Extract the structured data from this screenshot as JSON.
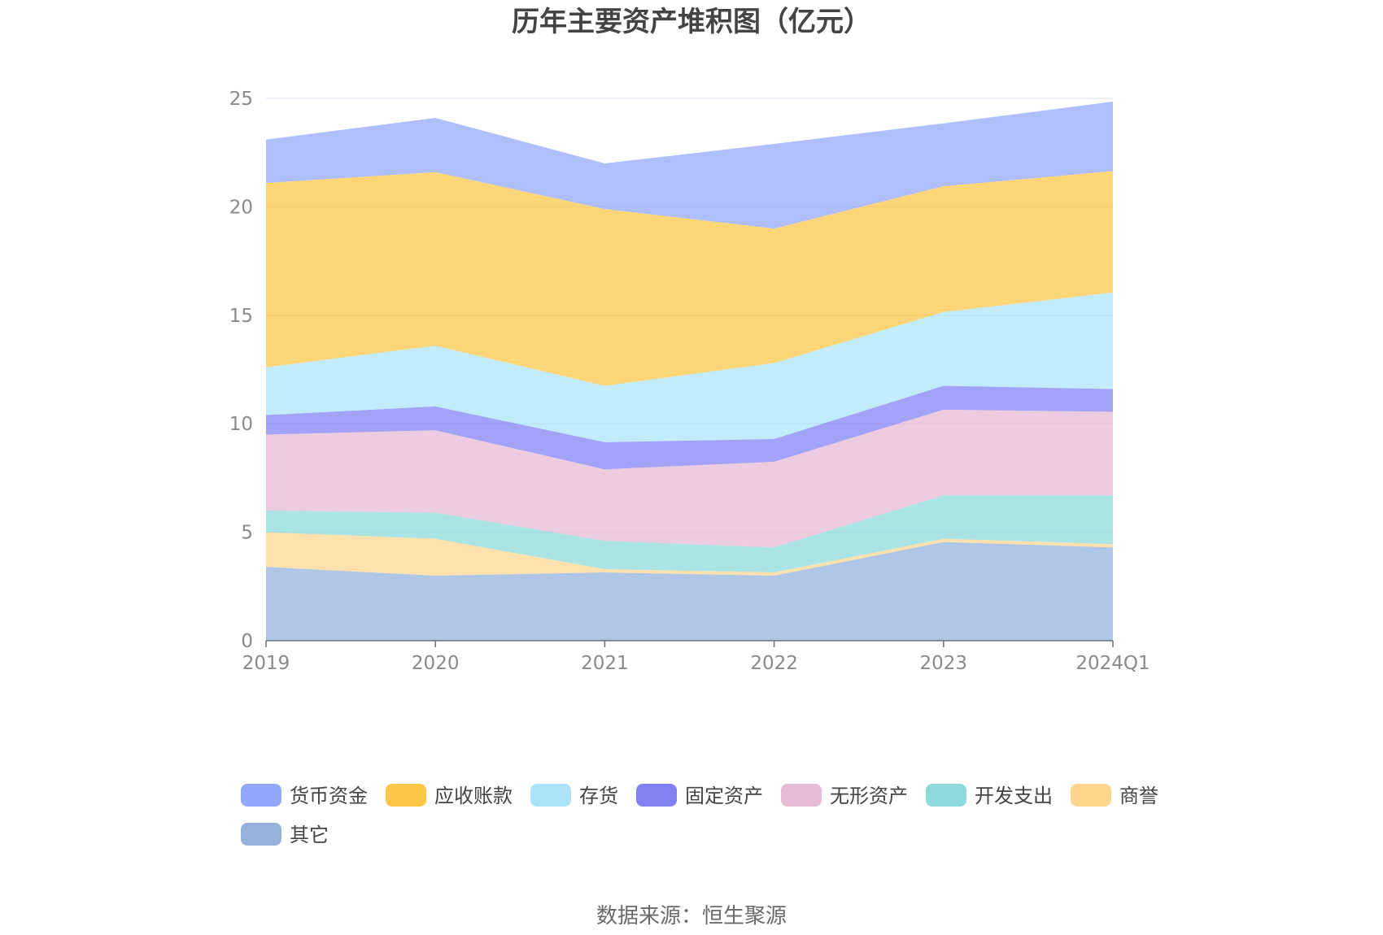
{
  "chart_data": {
    "type": "area",
    "stacked": true,
    "title": "历年主要资产堆积图（亿元）",
    "x": [
      "2019",
      "2020",
      "2021",
      "2022",
      "2023",
      "2024Q1"
    ],
    "ylim": [
      0,
      25
    ],
    "yticks": [
      0,
      5,
      10,
      15,
      20,
      25
    ],
    "grid": true,
    "legend_position": "bottom",
    "series": [
      {
        "name": "其它",
        "color": "#8FAEDB",
        "values": [
          3.4,
          3.0,
          3.15,
          3.0,
          4.55,
          4.3
        ]
      },
      {
        "name": "商誉",
        "color": "#FFD48A",
        "values": [
          1.6,
          1.7,
          0.15,
          0.15,
          0.15,
          0.15
        ]
      },
      {
        "name": "开发支出",
        "color": "#86D8D8",
        "values": [
          1.0,
          1.2,
          1.3,
          1.15,
          2.0,
          2.25
        ]
      },
      {
        "name": "无形资产",
        "color": "#E6B6D6",
        "values": [
          3.5,
          3.8,
          3.3,
          3.95,
          3.95,
          3.85
        ]
      },
      {
        "name": "固定资产",
        "color": "#7A7AF2",
        "values": [
          0.9,
          1.1,
          1.25,
          1.05,
          1.1,
          1.05
        ]
      },
      {
        "name": "存货",
        "color": "#A8E2FA",
        "values": [
          2.2,
          2.8,
          2.6,
          3.5,
          3.4,
          4.45
        ]
      },
      {
        "name": "应收账款",
        "color": "#FFC43D",
        "values": [
          8.5,
          8.0,
          8.15,
          6.2,
          5.8,
          5.6
        ]
      },
      {
        "name": "货币资金",
        "color": "#8CA4FA",
        "values": [
          2.0,
          2.5,
          2.1,
          3.9,
          2.9,
          3.2
        ]
      }
    ],
    "legend_order": [
      "货币资金",
      "应收账款",
      "存货",
      "固定资产",
      "无形资产",
      "开发支出",
      "商誉",
      "其它"
    ],
    "source": "数据来源：恒生聚源"
  }
}
